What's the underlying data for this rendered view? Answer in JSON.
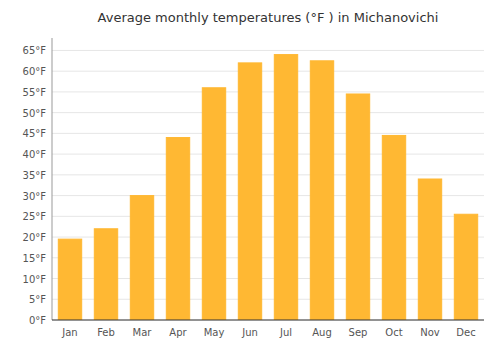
{
  "chart_data": {
    "type": "bar",
    "title": "Average monthly temperatures (°F ) in Michanovichi",
    "categories": [
      "Jan",
      "Feb",
      "Mar",
      "Apr",
      "May",
      "Jun",
      "Jul",
      "Aug",
      "Sep",
      "Oct",
      "Nov",
      "Dec"
    ],
    "values": [
      19.5,
      22,
      30,
      44,
      56,
      62,
      64,
      62.5,
      54.5,
      44.5,
      34,
      25.5
    ],
    "color": "#FFB833",
    "ylim": [
      0,
      68
    ],
    "yticks": [
      {
        "value": 0,
        "label": "0°F"
      },
      {
        "value": 5,
        "label": "5°F"
      },
      {
        "value": 10,
        "label": "10°F"
      },
      {
        "value": 15,
        "label": "15°F"
      },
      {
        "value": 20,
        "label": "20°F"
      },
      {
        "value": 25,
        "label": "25°F"
      },
      {
        "value": 30,
        "label": "30°F"
      },
      {
        "value": 35,
        "label": "35°F"
      },
      {
        "value": 40,
        "label": "40°F"
      },
      {
        "value": 45,
        "label": "45°F"
      },
      {
        "value": 50,
        "label": "50°F"
      },
      {
        "value": 55,
        "label": "55°F"
      },
      {
        "value": 60,
        "label": "60°F"
      },
      {
        "value": 65,
        "label": "65°F"
      }
    ],
    "grid": true
  }
}
